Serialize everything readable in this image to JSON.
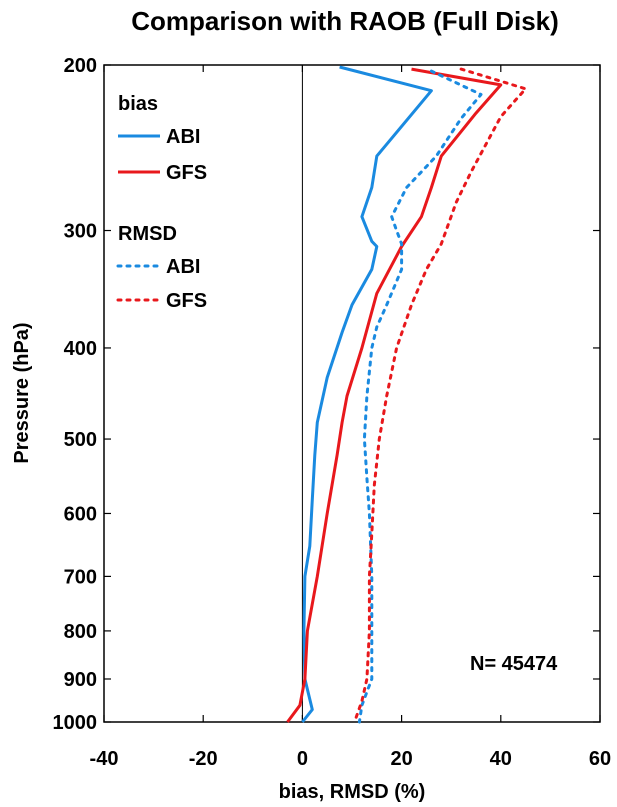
{
  "chart_data": {
    "type": "line",
    "title": "Comparison with RAOB (Full Disk)",
    "xlabel": "bias, RMSD (%)",
    "ylabel": "Pressure (hPa)",
    "xlim": [
      -40,
      60
    ],
    "ylim": [
      1000,
      200
    ],
    "yscale": "log",
    "x_ticks": [
      "-40",
      "-20",
      "0",
      "20",
      "40",
      "60"
    ],
    "y_ticks": [
      "200",
      "300",
      "400",
      "500",
      "600",
      "700",
      "800",
      "900",
      "1000"
    ],
    "grid": false,
    "annotation": "N= 45474",
    "legend": {
      "placement": "top-left",
      "groups": [
        {
          "heading": "bias",
          "entries": [
            {
              "label": "ABI",
              "color": "#1a8ae0",
              "style": "solid"
            },
            {
              "label": "GFS",
              "color": "#e8181c",
              "style": "solid"
            }
          ]
        },
        {
          "heading": "RMSD",
          "entries": [
            {
              "label": "ABI",
              "color": "#1a8ae0",
              "style": "dotted"
            },
            {
              "label": "GFS",
              "color": "#e8181c",
              "style": "dotted"
            }
          ]
        }
      ]
    },
    "series": [
      {
        "group": "bias",
        "name": "ABI",
        "color": "#1a8ae0",
        "style": "solid",
        "points": [
          [
            7.5,
            201
          ],
          [
            26,
            213
          ],
          [
            15,
            250
          ],
          [
            14,
            270
          ],
          [
            12,
            290
          ],
          [
            14,
            308
          ],
          [
            15,
            312
          ],
          [
            14,
            330
          ],
          [
            10,
            360
          ],
          [
            8,
            385
          ],
          [
            5,
            430
          ],
          [
            3,
            480
          ],
          [
            2.5,
            520
          ],
          [
            2,
            580
          ],
          [
            1.5,
            650
          ],
          [
            0.5,
            700
          ],
          [
            0.3,
            800
          ],
          [
            0.5,
            900
          ],
          [
            2,
            970
          ],
          [
            0,
            1000
          ]
        ]
      },
      {
        "group": "bias",
        "name": "GFS",
        "color": "#e8181c",
        "style": "solid",
        "points": [
          [
            22,
            202
          ],
          [
            40,
            210
          ],
          [
            35,
            225
          ],
          [
            28,
            250
          ],
          [
            26,
            270
          ],
          [
            24,
            290
          ],
          [
            20,
            312
          ],
          [
            15,
            350
          ],
          [
            12,
            400
          ],
          [
            9,
            450
          ],
          [
            8,
            480
          ],
          [
            7,
            520
          ],
          [
            5,
            600
          ],
          [
            3,
            700
          ],
          [
            1,
            800
          ],
          [
            0.5,
            900
          ],
          [
            -0.5,
            960
          ],
          [
            -3,
            1000
          ]
        ]
      },
      {
        "group": "RMSD",
        "name": "ABI",
        "color": "#1a8ae0",
        "style": "dotted",
        "points": [
          [
            26,
            203
          ],
          [
            36,
            215
          ],
          [
            32,
            228
          ],
          [
            27,
            250
          ],
          [
            21,
            270
          ],
          [
            18,
            290
          ],
          [
            19,
            300
          ],
          [
            20,
            310
          ],
          [
            20,
            330
          ],
          [
            17,
            360
          ],
          [
            15,
            380
          ],
          [
            14,
            400
          ],
          [
            13,
            450
          ],
          [
            12.5,
            500
          ],
          [
            13,
            550
          ],
          [
            13.5,
            600
          ],
          [
            14,
            700
          ],
          [
            14,
            800
          ],
          [
            14,
            900
          ],
          [
            12,
            960
          ],
          [
            11.5,
            1000
          ]
        ]
      },
      {
        "group": "RMSD",
        "name": "GFS",
        "color": "#e8181c",
        "style": "dotted",
        "points": [
          [
            32,
            202
          ],
          [
            45,
            212
          ],
          [
            40,
            227
          ],
          [
            34,
            260
          ],
          [
            31,
            280
          ],
          [
            28,
            310
          ],
          [
            25,
            330
          ],
          [
            22,
            360
          ],
          [
            19,
            400
          ],
          [
            17,
            450
          ],
          [
            15.5,
            500
          ],
          [
            14.5,
            560
          ],
          [
            14,
            630
          ],
          [
            13.5,
            700
          ],
          [
            13.5,
            800
          ],
          [
            13,
            900
          ],
          [
            12,
            950
          ],
          [
            10.5,
            1000
          ]
        ]
      }
    ]
  }
}
